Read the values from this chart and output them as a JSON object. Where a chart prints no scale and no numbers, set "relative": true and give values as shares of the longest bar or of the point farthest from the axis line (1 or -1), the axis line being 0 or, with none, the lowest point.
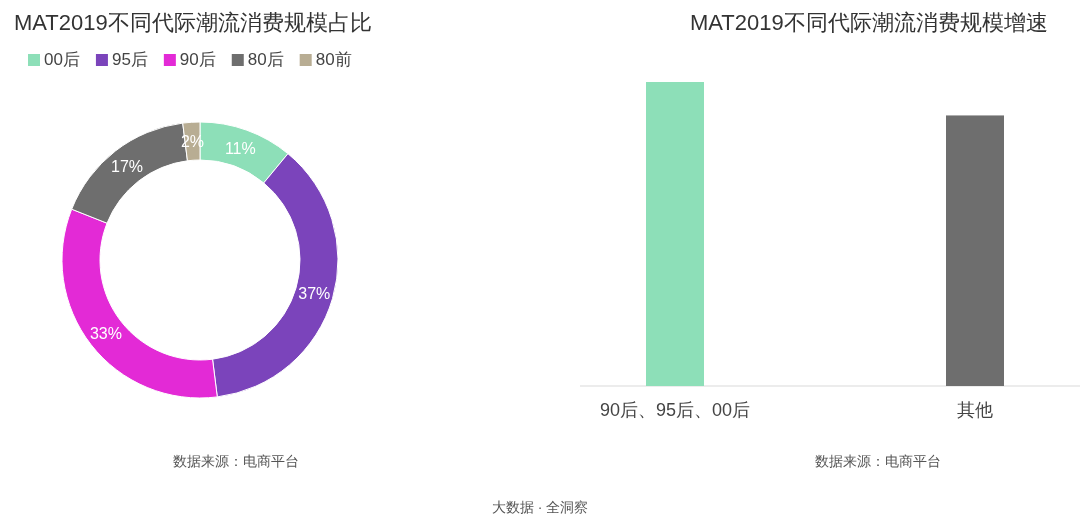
{
  "chart_data": [
    {
      "type": "donut",
      "title": "MAT2019不同代际潮流消费规模占比",
      "categories": [
        "00后",
        "95后",
        "90后",
        "80后",
        "80前"
      ],
      "values": [
        11,
        37,
        33,
        17,
        2
      ],
      "colors": [
        "#8ddfb8",
        "#7b44bb",
        "#e32ad6",
        "#6e6e6e",
        "#b8ad93"
      ],
      "value_labels": [
        "11%",
        "37%",
        "33%",
        "17%",
        "2%"
      ],
      "legend": "top left",
      "annotations": [
        "数据来源：电商平台"
      ]
    },
    {
      "type": "bar",
      "title": "MAT2019不同代际潮流消费规模增速",
      "categories": [
        "90后、95后、00后",
        "其他"
      ],
      "relative": true,
      "values": [
        1,
        0.89
      ],
      "colors": [
        "#8ddfb8",
        "#6e6e6e"
      ],
      "annotations": [
        "数据来源：电商平台",
        "大数据 · 全洞察"
      ]
    }
  ]
}
